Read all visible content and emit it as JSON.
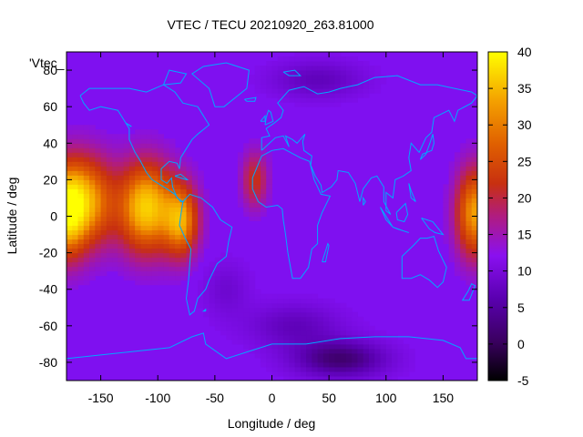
{
  "chart_data": {
    "type": "heatmap",
    "title": "VTEC / TECU 20210920_263.81000",
    "xlabel": "Longitude / deg",
    "ylabel": "Latitude / deg",
    "legend_key": "'Vtec_",
    "xlim": [
      -180,
      180
    ],
    "ylim": [
      -90,
      90
    ],
    "x_ticks": [
      -150,
      -100,
      -50,
      0,
      50,
      100,
      150
    ],
    "y_ticks": [
      -80,
      -60,
      -40,
      -20,
      0,
      20,
      40,
      60,
      80
    ],
    "grid": false,
    "colorbar": {
      "position": "right",
      "range": [
        -5,
        40
      ],
      "ticks": [
        -5,
        0,
        5,
        10,
        15,
        20,
        25,
        30,
        35,
        40
      ],
      "palette": "black-purple-red-orange-yellow"
    },
    "overlay": "coastlines",
    "coastline_color": "#00a8ff",
    "features": [
      {
        "lon": -165,
        "lat": 8,
        "tec": 32
      },
      {
        "lon": -110,
        "lat": 5,
        "tec": 35
      },
      {
        "lon": -80,
        "lat": -2,
        "tec": 30
      },
      {
        "lon": -15,
        "lat": 22,
        "tec": 18
      },
      {
        "lon": 178,
        "lat": 2,
        "tec": 30
      },
      {
        "lon": 60,
        "lat": -78,
        "tec": 1
      },
      {
        "lon": 40,
        "lat": 75,
        "tec": 5
      }
    ],
    "background_tec": 11
  }
}
